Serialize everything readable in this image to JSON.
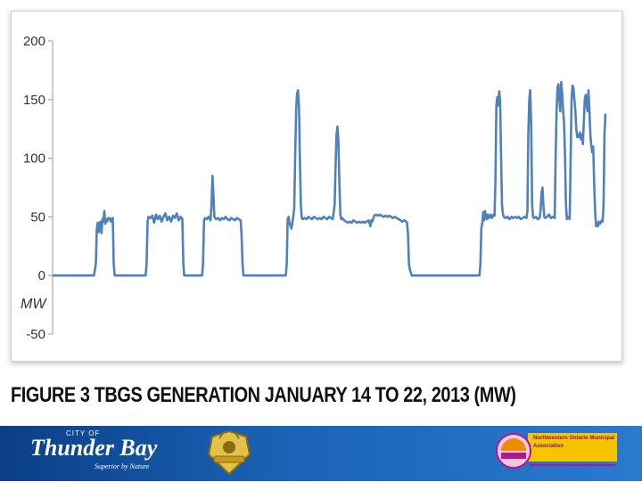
{
  "chart_data": {
    "type": "line",
    "title": "",
    "xlabel": "",
    "ylabel": "",
    "unit_label": "MW",
    "ylim": [
      -50,
      200
    ],
    "yticks": [
      200,
      150,
      100,
      50,
      0,
      -50
    ],
    "grid": false,
    "legend": "none",
    "line_color": "#4f81bd",
    "series": [
      {
        "points": [
          [
            0,
            0
          ],
          [
            44,
            0
          ],
          [
            46,
            10
          ],
          [
            47,
            40
          ],
          [
            48,
            45
          ],
          [
            49,
            37
          ],
          [
            50,
            45
          ],
          [
            51,
            46
          ],
          [
            52,
            36
          ],
          [
            53,
            48
          ],
          [
            54,
            46
          ],
          [
            55,
            55
          ],
          [
            56,
            44
          ],
          [
            57,
            48
          ],
          [
            58,
            46
          ],
          [
            59,
            49
          ],
          [
            60,
            48
          ],
          [
            61,
            49
          ],
          [
            62,
            46
          ],
          [
            63,
            48
          ],
          [
            64,
            49
          ],
          [
            65,
            10
          ],
          [
            66,
            0
          ],
          [
            99,
            0
          ],
          [
            100,
            10
          ],
          [
            101,
            46
          ],
          [
            102,
            50
          ],
          [
            104,
            49
          ],
          [
            106,
            51
          ],
          [
            108,
            45
          ],
          [
            110,
            52
          ],
          [
            112,
            48
          ],
          [
            114,
            51
          ],
          [
            116,
            46
          ],
          [
            118,
            50
          ],
          [
            120,
            53
          ],
          [
            122,
            47
          ],
          [
            124,
            50
          ],
          [
            126,
            46
          ],
          [
            128,
            51
          ],
          [
            130,
            49
          ],
          [
            132,
            53
          ],
          [
            134,
            47
          ],
          [
            136,
            50
          ],
          [
            138,
            48
          ],
          [
            139,
            10
          ],
          [
            140,
            0
          ],
          [
            159,
            0
          ],
          [
            160,
            10
          ],
          [
            161,
            47
          ],
          [
            162,
            49
          ],
          [
            164,
            48
          ],
          [
            166,
            50
          ],
          [
            168,
            47
          ],
          [
            169,
            60
          ],
          [
            170,
            85
          ],
          [
            171,
            70
          ],
          [
            172,
            50
          ],
          [
            174,
            48
          ],
          [
            176,
            49
          ],
          [
            178,
            47
          ],
          [
            180,
            49
          ],
          [
            182,
            48
          ],
          [
            184,
            50
          ],
          [
            186,
            48
          ],
          [
            188,
            47
          ],
          [
            190,
            49
          ],
          [
            192,
            48
          ],
          [
            194,
            47
          ],
          [
            196,
            49
          ],
          [
            198,
            48
          ],
          [
            200,
            47
          ],
          [
            201,
            35
          ],
          [
            202,
            10
          ],
          [
            203,
            0
          ],
          [
            248,
            0
          ],
          [
            249,
            10
          ],
          [
            250,
            48
          ],
          [
            251,
            50
          ],
          [
            252,
            45
          ],
          [
            253,
            42
          ],
          [
            254,
            40
          ],
          [
            255,
            45
          ],
          [
            256,
            50
          ],
          [
            257,
            58
          ],
          [
            258,
            100
          ],
          [
            259,
            140
          ],
          [
            260,
            155
          ],
          [
            261,
            158
          ],
          [
            262,
            145
          ],
          [
            263,
            100
          ],
          [
            264,
            60
          ],
          [
            265,
            49
          ],
          [
            266,
            48
          ],
          [
            268,
            49
          ],
          [
            270,
            48
          ],
          [
            272,
            50
          ],
          [
            274,
            49
          ],
          [
            276,
            48
          ],
          [
            278,
            50
          ],
          [
            280,
            49
          ],
          [
            282,
            48
          ],
          [
            284,
            49
          ],
          [
            286,
            48
          ],
          [
            288,
            50
          ],
          [
            290,
            49
          ],
          [
            292,
            48
          ],
          [
            294,
            50
          ],
          [
            296,
            49
          ],
          [
            298,
            48
          ],
          [
            300,
            60
          ],
          [
            301,
            95
          ],
          [
            302,
            120
          ],
          [
            303,
            127
          ],
          [
            304,
            115
          ],
          [
            305,
            80
          ],
          [
            306,
            52
          ],
          [
            307,
            48
          ],
          [
            308,
            49
          ],
          [
            310,
            47
          ],
          [
            312,
            46
          ],
          [
            314,
            45
          ],
          [
            316,
            46
          ],
          [
            318,
            45
          ],
          [
            320,
            47
          ],
          [
            322,
            46
          ],
          [
            324,
            45
          ],
          [
            326,
            46
          ],
          [
            328,
            45
          ],
          [
            330,
            46
          ],
          [
            332,
            45
          ],
          [
            334,
            46
          ],
          [
            336,
            47
          ],
          [
            338,
            42
          ],
          [
            339,
            47
          ],
          [
            340,
            46
          ],
          [
            342,
            51
          ],
          [
            344,
            52
          ],
          [
            346,
            51
          ],
          [
            348,
            52
          ],
          [
            350,
            51
          ],
          [
            352,
            50
          ],
          [
            354,
            51
          ],
          [
            356,
            50
          ],
          [
            358,
            51
          ],
          [
            360,
            50
          ],
          [
            362,
            49
          ],
          [
            364,
            50
          ],
          [
            366,
            49
          ],
          [
            368,
            48
          ],
          [
            370,
            47
          ],
          [
            372,
            46
          ],
          [
            374,
            47
          ],
          [
            376,
            46
          ],
          [
            377,
            45
          ],
          [
            378,
            35
          ],
          [
            379,
            10
          ],
          [
            380,
            5
          ],
          [
            382,
            0
          ],
          [
            454,
            0
          ],
          [
            455,
            10
          ],
          [
            456,
            40
          ],
          [
            457,
            45
          ],
          [
            458,
            54
          ],
          [
            459,
            47
          ],
          [
            460,
            55
          ],
          [
            461,
            50
          ],
          [
            462,
            48
          ],
          [
            463,
            52
          ],
          [
            464,
            49
          ],
          [
            465,
            50
          ],
          [
            466,
            52
          ],
          [
            467,
            49
          ],
          [
            468,
            50
          ],
          [
            469,
            52
          ],
          [
            470,
            51
          ],
          [
            471,
            80
          ],
          [
            472,
            145
          ],
          [
            473,
            152
          ],
          [
            474,
            145
          ],
          [
            475,
            157
          ],
          [
            476,
            148
          ],
          [
            477,
            100
          ],
          [
            478,
            60
          ],
          [
            479,
            52
          ],
          [
            480,
            50
          ],
          [
            482,
            49
          ],
          [
            484,
            50
          ],
          [
            486,
            48
          ],
          [
            488,
            50
          ],
          [
            490,
            49
          ],
          [
            492,
            50
          ],
          [
            494,
            49
          ],
          [
            496,
            50
          ],
          [
            498,
            48
          ],
          [
            500,
            49
          ],
          [
            502,
            50
          ],
          [
            504,
            49
          ],
          [
            505,
            55
          ],
          [
            506,
            120
          ],
          [
            507,
            150
          ],
          [
            508,
            158
          ],
          [
            509,
            130
          ],
          [
            510,
            60
          ],
          [
            511,
            50
          ],
          [
            512,
            49
          ],
          [
            514,
            50
          ],
          [
            516,
            48
          ],
          [
            518,
            49
          ],
          [
            519,
            55
          ],
          [
            520,
            70
          ],
          [
            521,
            75
          ],
          [
            522,
            60
          ],
          [
            523,
            50
          ],
          [
            524,
            49
          ],
          [
            526,
            50
          ],
          [
            528,
            52
          ],
          [
            530,
            49
          ],
          [
            532,
            50
          ],
          [
            534,
            49
          ],
          [
            535,
            100
          ],
          [
            536,
            140
          ],
          [
            537,
            160
          ],
          [
            538,
            163
          ],
          [
            539,
            150
          ],
          [
            540,
            140
          ],
          [
            541,
            165
          ],
          [
            542,
            155
          ],
          [
            543,
            140
          ],
          [
            544,
            130
          ],
          [
            545,
            100
          ],
          [
            546,
            60
          ],
          [
            547,
            48
          ],
          [
            548,
            50
          ],
          [
            549,
            49
          ],
          [
            550,
            48
          ],
          [
            551,
            100
          ],
          [
            552,
            150
          ],
          [
            553,
            162
          ],
          [
            554,
            160
          ],
          [
            555,
            150
          ],
          [
            556,
            140
          ],
          [
            557,
            125
          ],
          [
            558,
            118
          ],
          [
            559,
            120
          ],
          [
            560,
            118
          ],
          [
            561,
            122
          ],
          [
            562,
            116
          ],
          [
            563,
            120
          ],
          [
            564,
            112
          ],
          [
            565,
            130
          ],
          [
            566,
            150
          ],
          [
            567,
            154
          ],
          [
            568,
            145
          ],
          [
            569,
            140
          ],
          [
            570,
            158
          ],
          [
            571,
            140
          ],
          [
            572,
            120
          ],
          [
            573,
            110
          ],
          [
            574,
            105
          ],
          [
            575,
            110
          ],
          [
            576,
            80
          ],
          [
            577,
            55
          ],
          [
            578,
            42
          ],
          [
            579,
            45
          ],
          [
            580,
            42
          ],
          [
            581,
            46
          ],
          [
            582,
            44
          ],
          [
            583,
            45
          ],
          [
            584,
            47
          ],
          [
            585,
            46
          ],
          [
            586,
            60
          ],
          [
            587,
            120
          ],
          [
            588,
            138
          ]
        ]
      }
    ]
  },
  "caption": "FIGURE 3 TBGS GENERATION JANUARY 14 TO 22, 2013 (MW)",
  "footer": {
    "background": "#1b5fae",
    "city_logo": {
      "prefix": "CITY OF",
      "name": "Thunder Bay",
      "tagline": "Superior by Nature"
    },
    "crest": {
      "icon": "thunder-bay-crest-icon"
    },
    "noma_logo": {
      "abbrev": "noma",
      "name": "Northwestern Ontario Municipal Association"
    }
  }
}
